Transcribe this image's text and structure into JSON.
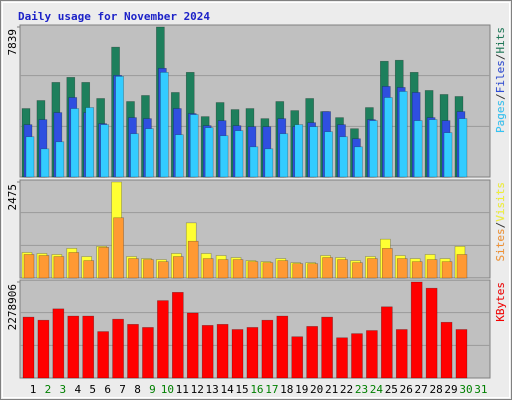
{
  "title": "Daily usage for November 2024",
  "legend_separator": "/",
  "chart_data": [
    {
      "type": "bar",
      "ylim": [
        0,
        7839
      ],
      "yticks": [
        7839
      ],
      "series": [
        {
          "name": "Pages",
          "color": "#33ccff",
          "values": [
            2104,
            1473,
            1841,
            3578,
            3630,
            2736,
            5261,
            2262,
            2525,
            5471,
            2210,
            3262,
            2578,
            2157,
            2420,
            1578,
            1473,
            2262,
            2736,
            2630,
            2367,
            2104,
            1578,
            2946,
            4156,
            4472,
            2946,
            2999,
            2315,
            3051,
            null
          ]
        },
        {
          "name": "Files",
          "color": "#2f4fe0",
          "values": [
            2736,
            2999,
            3367,
            4156,
            3367,
            2788,
            5313,
            3104,
            3051,
            5682,
            3578,
            3314,
            2683,
            2946,
            2683,
            2630,
            2630,
            3051,
            2630,
            2841,
            3420,
            2736,
            1999,
            2999,
            4735,
            4682,
            4419,
            3104,
            2946,
            3420,
            null
          ]
        },
        {
          "name": "Hits",
          "color": "#1e7f5c",
          "values": [
            3578,
            3998,
            4945,
            5208,
            4945,
            4104,
            6787,
            3946,
            4261,
            7839,
            4419,
            5471,
            3157,
            3893,
            3525,
            3578,
            3051,
            3946,
            3472,
            4104,
            3420,
            3104,
            2525,
            3630,
            6050,
            6103,
            5471,
            4524,
            4314,
            4209,
            null
          ]
        }
      ]
    },
    {
      "type": "bar",
      "ylim": [
        0,
        2475
      ],
      "yticks": [
        2475
      ],
      "series": [
        {
          "name": "Sites",
          "color": "#ff9933",
          "values": [
            606,
            579,
            553,
            658,
            448,
            790,
            1553,
            500,
            474,
            421,
            553,
            948,
            500,
            474,
            474,
            421,
            395,
            448,
            369,
            369,
            527,
            474,
            395,
            500,
            764,
            500,
            421,
            474,
            421,
            606,
            null
          ]
        },
        {
          "name": "Visits",
          "color": "#ffff33",
          "values": [
            658,
            632,
            606,
            764,
            553,
            816,
            2475,
            553,
            500,
            474,
            632,
            1422,
            632,
            579,
            527,
            448,
            421,
            500,
            395,
            395,
            579,
            527,
            448,
            553,
            1001,
            579,
            500,
            606,
            500,
            816,
            null
          ]
        }
      ]
    },
    {
      "type": "bar",
      "ylim": [
        0,
        2278906
      ],
      "yticks": [
        2278906
      ],
      "categories": [
        "1",
        "2",
        "3",
        "4",
        "5",
        "6",
        "7",
        "8",
        "9",
        "10",
        "11",
        "12",
        "13",
        "14",
        "15",
        "16",
        "17",
        "18",
        "19",
        "20",
        "21",
        "22",
        "23",
        "24",
        "25",
        "26",
        "27",
        "28",
        "29",
        "30",
        "31"
      ],
      "category_colors": [
        "#000000",
        "#008000",
        "#008000",
        "#000000",
        "#000000",
        "#000000",
        "#000000",
        "#000000",
        "#008000",
        "#008000",
        "#000000",
        "#000000",
        "#000000",
        "#000000",
        "#000000",
        "#008000",
        "#008000",
        "#000000",
        "#000000",
        "#000000",
        "#000000",
        "#000000",
        "#008000",
        "#008000",
        "#000000",
        "#000000",
        "#000000",
        "#000000",
        "#000000",
        "#008000",
        "#008000"
      ],
      "series": [
        {
          "name": "KBytes",
          "color": "#ff0000",
          "values": [
            1445756,
            1372230,
            1641775,
            1470260,
            1470260,
            1102695,
            1396735,
            1274205,
            1200700,
            1837800,
            2033840,
            1543750,
            1249700,
            1274205,
            1151700,
            1200700,
            1372230,
            1470260,
            980170,
            1225215,
            1445756,
            955665,
            1053660,
            1127180,
            1690780,
            1151700,
            2278906,
            2131880,
            1323220,
            1151700,
            null
          ]
        }
      ]
    }
  ]
}
